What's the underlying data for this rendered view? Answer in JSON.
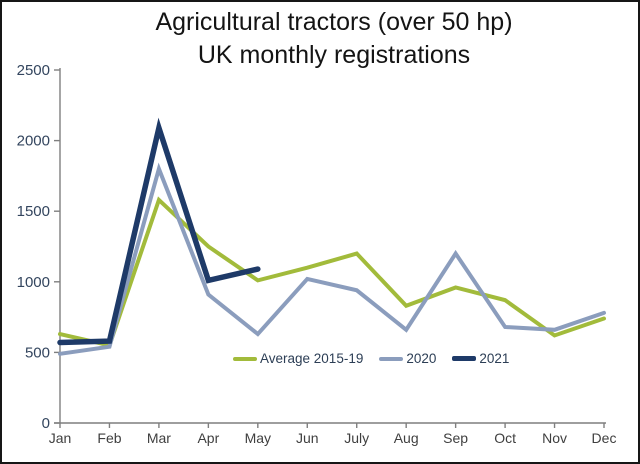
{
  "title": {
    "line1": "Agricultural tractors (over 50 hp)",
    "line2": "UK monthly registrations"
  },
  "chart_data": {
    "type": "line",
    "categories": [
      "Jan",
      "Feb",
      "Mar",
      "Apr",
      "May",
      "Jun",
      "July",
      "Aug",
      "Sep",
      "Oct",
      "Nov",
      "Dec"
    ],
    "series": [
      {
        "name": "Average 2015-19",
        "color": "#a2bb3b",
        "stroke_width": 4,
        "values": [
          630,
          550,
          1580,
          1250,
          1010,
          1100,
          1200,
          830,
          960,
          870,
          620,
          740
        ]
      },
      {
        "name": "2020",
        "color": "#8b9dbd",
        "stroke_width": 4,
        "values": [
          490,
          540,
          1800,
          910,
          630,
          1020,
          940,
          660,
          1200,
          680,
          660,
          780
        ]
      },
      {
        "name": "2021",
        "color": "#1e3a68",
        "stroke_width": 5.5,
        "values": [
          570,
          580,
          2090,
          1010,
          1090,
          null,
          null,
          null,
          null,
          null,
          null,
          null
        ]
      }
    ],
    "ylim": [
      0,
      2500
    ],
    "ytick_labels": [
      "0",
      "500",
      "1000",
      "1500",
      "2000",
      "2500"
    ],
    "grid": false,
    "legend_position": "inside-bottom-center"
  },
  "style": {
    "axis_color": "#7f7f7f",
    "y_label_color": "#33455e",
    "x_label_color": "#3f3f3f",
    "title_color": "#141414"
  }
}
